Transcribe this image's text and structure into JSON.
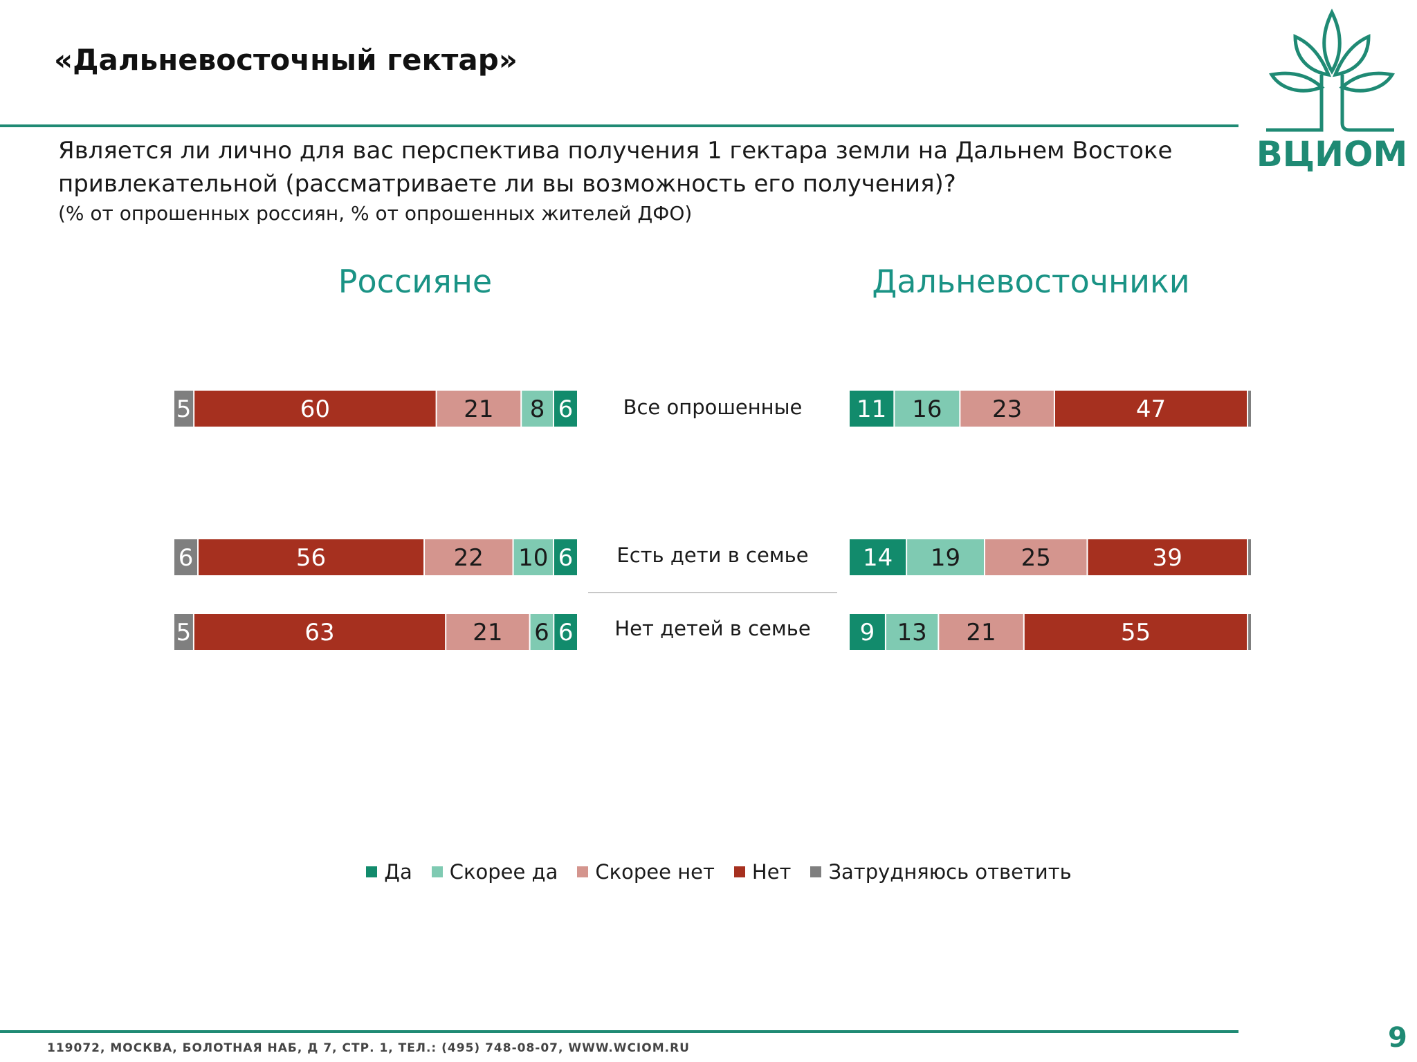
{
  "header": {
    "title": "«Дальневосточный гектар»",
    "question_line1": "Является ли лично для вас перспектива получения 1 гектара земли на Дальнем Востоке",
    "question_line2": "привлекательной (рассматриваете ли вы возможность его получения)?",
    "subtitle": "(% от опрошенных россиян, % от опрошенных жителей ДФО)"
  },
  "logo": {
    "text": "ВЦИОМ"
  },
  "footer": {
    "address": "119072, МОСКВА, БОЛОТНАЯ НАБ, Д 7, СТР. 1, ТЕЛ.: (495) 748-08-07, WWW.WCIOM.RU",
    "page": "9"
  },
  "colors": {
    "accent": "#1f8a74",
    "Да": "#128b6c",
    "Скорее да": "#7fcab2",
    "Скорее нет": "#d4958e",
    "Нет": "#a6301f",
    "Затрудняюсь ответить": "#7f7f7f"
  },
  "chart_data": {
    "type": "bar",
    "orientation": "horizontal-stacked",
    "categories": [
      "Все опрошенные",
      "Есть дети в семье",
      "Нет детей в семье"
    ],
    "legend": [
      "Да",
      "Скорее да",
      "Скорее нет",
      "Нет",
      "Затрудняюсь ответить"
    ],
    "panels": [
      {
        "name": "Россияне",
        "series": [
          {
            "name": "Затрудняюсь ответить",
            "values": [
              5,
              6,
              5
            ]
          },
          {
            "name": "Нет",
            "values": [
              60,
              56,
              63
            ]
          },
          {
            "name": "Скорее нет",
            "values": [
              21,
              22,
              21
            ]
          },
          {
            "name": "Скорее да",
            "values": [
              8,
              10,
              6
            ]
          },
          {
            "name": "Да",
            "values": [
              6,
              6,
              6
            ]
          }
        ]
      },
      {
        "name": "Дальневосточники",
        "series": [
          {
            "name": "Да",
            "values": [
              11,
              14,
              9
            ]
          },
          {
            "name": "Скорее да",
            "values": [
              16,
              19,
              13
            ]
          },
          {
            "name": "Скорее нет",
            "values": [
              23,
              25,
              21
            ]
          },
          {
            "name": "Нет",
            "values": [
              47,
              39,
              55
            ]
          },
          {
            "name": "Затрудняюсь ответить",
            "values": [
              1,
              1,
              1
            ],
            "labels_hidden": true
          }
        ]
      }
    ]
  }
}
